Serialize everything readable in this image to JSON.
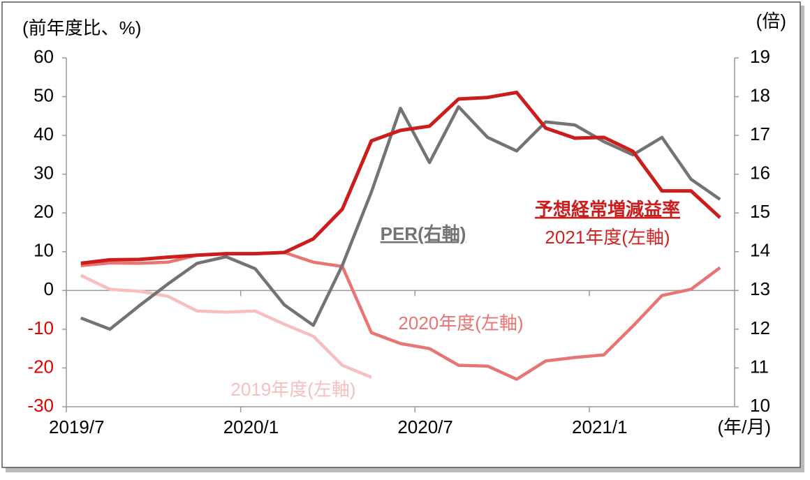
{
  "chart_data": {
    "type": "line",
    "y_axis_label": "(前年度比、%)",
    "y2_axis_label": "(倍)",
    "x_axis_label": "(年/月)",
    "categories": [
      "2019/7",
      null,
      null,
      null,
      null,
      null,
      "2020/1",
      null,
      null,
      null,
      null,
      null,
      "2020/7",
      null,
      null,
      null,
      null,
      null,
      "2021/1",
      null,
      null,
      null,
      null
    ],
    "ylim": [
      -30,
      60
    ],
    "yticks": [
      -30,
      -20,
      -10,
      0,
      10,
      20,
      30,
      40,
      50,
      60
    ],
    "y2lim": [
      10,
      19
    ],
    "y2ticks": [
      10,
      11,
      12,
      13,
      14,
      15,
      16,
      17,
      18,
      19
    ],
    "annotation": "予想経常増減益率",
    "series": [
      {
        "name": "2021年度(左軸)",
        "color": "#cc1d1d",
        "values": [
          7.0,
          7.9,
          8.0,
          8.6,
          9.1,
          9.5,
          9.5,
          9.8,
          13.3,
          21.0,
          38.6,
          41.3,
          42.4,
          49.4,
          49.8,
          51.1,
          41.9,
          39.3,
          39.5,
          35.9,
          25.7,
          25.7,
          18.8
        ]
      },
      {
        "name": "2020年度(左軸)",
        "color": "#e87474",
        "values": [
          6.4,
          7.1,
          7.0,
          7.3,
          9.1,
          9.5,
          9.5,
          9.8,
          7.3,
          6.2,
          -10.9,
          -13.7,
          -15.0,
          -19.3,
          -19.5,
          -22.9,
          -18.2,
          -17.3,
          -16.6,
          -9.2,
          -1.3,
          0.3,
          5.9
        ]
      },
      {
        "name": "2019年度(左軸)",
        "color": "#f6c0c0",
        "values": [
          3.9,
          0.3,
          -0.2,
          -1.5,
          -5.3,
          -5.6,
          -5.3,
          -8.7,
          -11.8,
          -19.3,
          -22.4,
          null,
          null,
          null,
          null,
          null,
          null,
          null,
          null,
          null,
          null,
          null,
          null
        ]
      },
      {
        "name": "PER(右軸)",
        "color": "#737373",
        "axis": "y2",
        "values": [
          12.29,
          12.0,
          12.6,
          13.17,
          13.7,
          13.87,
          13.56,
          12.63,
          12.1,
          13.65,
          15.54,
          17.7,
          16.3,
          17.74,
          16.95,
          16.6,
          17.35,
          17.27,
          16.84,
          16.5,
          16.95,
          15.87,
          15.35
        ]
      }
    ]
  }
}
